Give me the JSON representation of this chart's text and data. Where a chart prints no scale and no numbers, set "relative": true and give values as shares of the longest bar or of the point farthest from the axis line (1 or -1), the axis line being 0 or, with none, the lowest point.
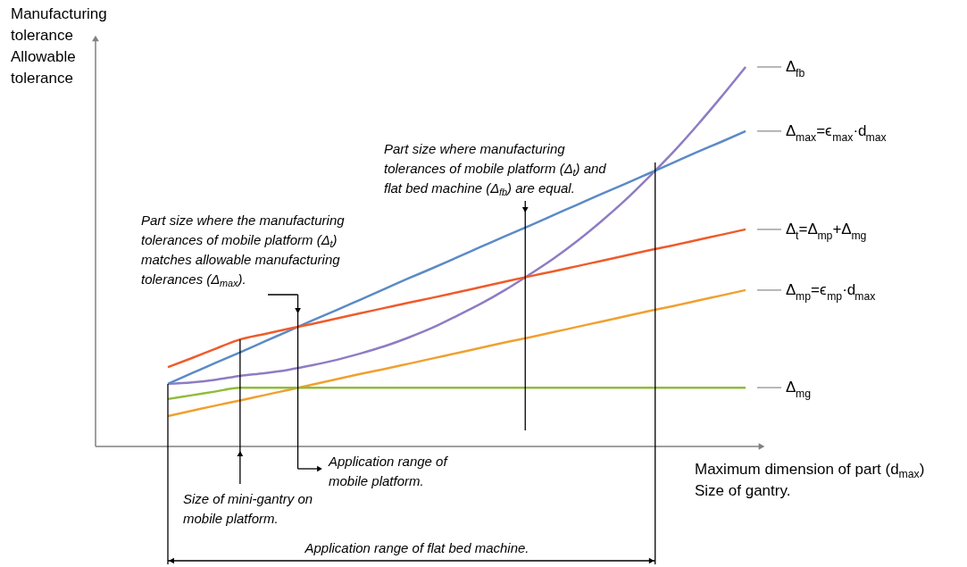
{
  "chart_data": {
    "type": "line",
    "relative": true,
    "ylabel": "Manufacturing tolerance\nAllowable tolerance",
    "xlabel": "Maximum dimension of part (d$_{max}$)\nSize of gantry.",
    "categories": [
      null,
      null,
      null,
      null,
      null,
      null,
      null,
      null,
      null,
      null,
      null,
      null,
      null,
      null,
      null,
      null,
      null,
      null,
      null,
      null,
      null,
      null,
      null,
      null,
      null
    ],
    "series": [
      {
        "name": "Δ$_{fb}$",
        "color": "#8e7cc3",
        "values": [
          0.165,
          0.169,
          0.176,
          0.186,
          0.193,
          0.202,
          0.214,
          0.228,
          0.245,
          0.264,
          0.287,
          0.313,
          0.344,
          0.376,
          0.412,
          0.452,
          0.494,
          0.541,
          0.593,
          0.649,
          0.711,
          0.776,
          0.847,
          0.922,
          1.0
        ]
      },
      {
        "name": "Δ$_{max}$=ϵ$_{max}$·d$_{max}$",
        "color": "#5b8ac6",
        "values": [
          0.165,
          0.193,
          0.221,
          0.248,
          0.276,
          0.304,
          0.332,
          0.359,
          0.387,
          0.415,
          0.443,
          0.47,
          0.498,
          0.526,
          0.554,
          0.581,
          0.609,
          0.637,
          0.665,
          0.692,
          0.72,
          0.748,
          0.776,
          0.803,
          0.831
        ]
      },
      {
        "name": "Δ$_{t}$=Δ$_{mp}$+Δ$_{mg}$",
        "color": "#ef5b2b",
        "values": [
          0.209,
          0.233,
          0.258,
          0.282,
          0.296,
          0.31,
          0.323,
          0.337,
          0.351,
          0.365,
          0.379,
          0.392,
          0.406,
          0.42,
          0.434,
          0.448,
          0.461,
          0.475,
          0.489,
          0.503,
          0.517,
          0.53,
          0.544,
          0.558,
          0.572
        ]
      },
      {
        "name": "Δ$_{mp}$=ϵ$_{mp}$·d$_{max}$",
        "color": "#f0a030",
        "values": [
          0.08,
          0.094,
          0.108,
          0.121,
          0.135,
          0.149,
          0.163,
          0.177,
          0.191,
          0.204,
          0.218,
          0.232,
          0.246,
          0.26,
          0.274,
          0.287,
          0.301,
          0.315,
          0.329,
          0.343,
          0.357,
          0.37,
          0.384,
          0.398,
          0.412
        ]
      },
      {
        "name": "Δ$_{mg}$",
        "color": "#8fbc3a",
        "values": [
          0.125,
          0.135,
          0.145,
          0.155,
          0.155,
          0.155,
          0.155,
          0.155,
          0.155,
          0.155,
          0.155,
          0.155,
          0.155,
          0.155,
          0.155,
          0.155,
          0.155,
          0.155,
          0.155,
          0.155,
          0.155,
          0.155,
          0.155,
          0.155,
          0.155
        ]
      }
    ],
    "annotations": [
      "Part size where manufacturing tolerances of mobile platform (Δ$_{t}$) and flat bed machine (Δ$_{fb}$) are equal.",
      "Part size where the manufacturing tolerances of mobile platform (Δ$_{t}$) matches allowable manufacturing tolerances (Δ$_{max}$).",
      "Application range of mobile platform.",
      "Size of mini-gantry on mobile platform.",
      "Application range of flat bed machine."
    ]
  }
}
